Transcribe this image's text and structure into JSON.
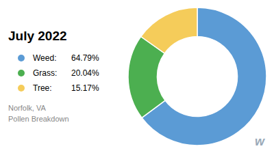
{
  "chart_data": {
    "type": "pie",
    "title": "July 2022",
    "subtitle": "Norfolk, VA\nPollen Breakdown",
    "categories": [
      "Weed:",
      "Grass:",
      "Tree:"
    ],
    "values": [
      64.79,
      20.04,
      15.17
    ],
    "value_labels": [
      "64.79%",
      "20.04%",
      "15.17%"
    ],
    "data_labels": true,
    "colors": [
      "#5b9bd5",
      "#4caf50",
      "#f5cc5a"
    ],
    "legend": "left",
    "annotations": [
      "w"
    ]
  }
}
